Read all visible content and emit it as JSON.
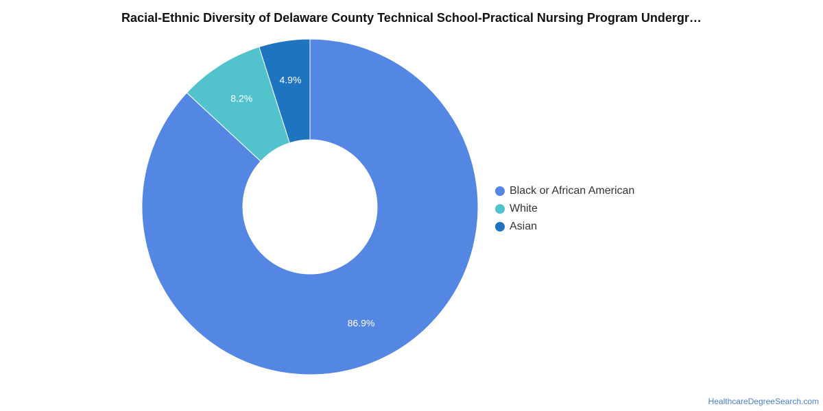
{
  "chart_data": {
    "type": "pie",
    "title": "Racial-Ethnic Diversity of Delaware County Technical School-Practical Nursing Program Undergr…",
    "categories": [
      "Black or African American",
      "White",
      "Asian"
    ],
    "values": [
      86.9,
      8.2,
      4.9
    ],
    "value_labels": [
      "86.9%",
      "8.2%",
      "4.9%"
    ],
    "colors": [
      "#5486e3",
      "#52c3cc",
      "#1f74c0"
    ],
    "legend_position": "right",
    "donut": true
  },
  "watermark": "HealthcareDegreeSearch.com"
}
